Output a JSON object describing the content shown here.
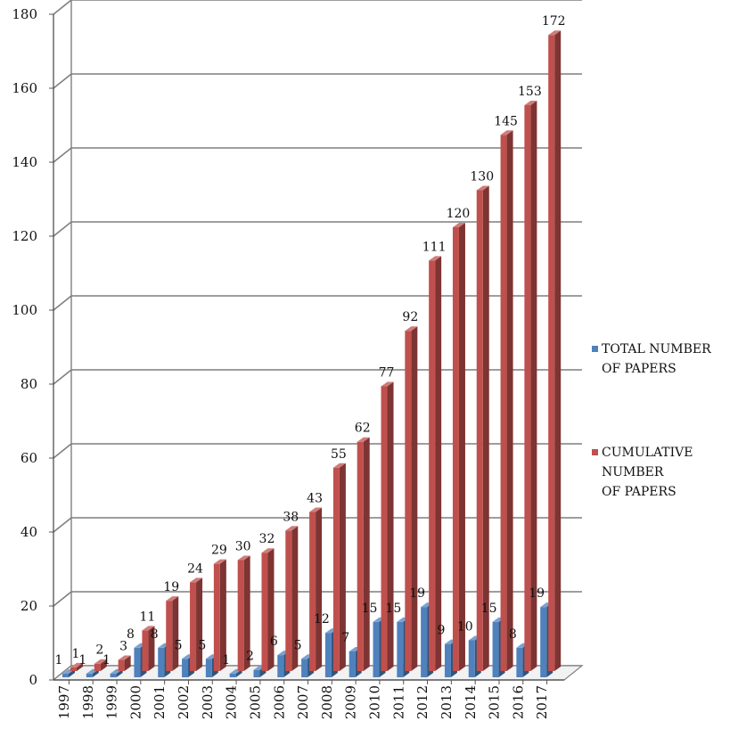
{
  "chart_data": {
    "type": "bar",
    "title": "",
    "xlabel": "",
    "ylabel": "",
    "ylim": [
      0,
      180
    ],
    "yticks": [
      0,
      20,
      40,
      60,
      80,
      100,
      120,
      140,
      160,
      180
    ],
    "grid": true,
    "legend_position": "right",
    "categories": [
      "1997",
      "1998",
      "1999",
      "2000",
      "2001",
      "2002",
      "2003",
      "2004",
      "2005",
      "2006",
      "2007",
      "2008",
      "2009",
      "2010",
      "2011",
      "2012",
      "2013",
      "2014",
      "2015",
      "2016",
      "2017"
    ],
    "series": [
      {
        "name_lines": [
          "TOTAL NUMBER",
          "OF PAPERS"
        ],
        "color": "#4f81bd",
        "values": [
          1,
          1,
          1,
          8,
          8,
          5,
          5,
          1,
          2,
          6,
          5,
          12,
          7,
          15,
          15,
          19,
          9,
          10,
          15,
          8,
          19
        ]
      },
      {
        "name_lines": [
          "CUMULATIVE",
          "NUMBER",
          "OF PAPERS"
        ],
        "color": "#c0504d",
        "values": [
          1,
          2,
          3,
          11,
          19,
          24,
          29,
          30,
          32,
          38,
          43,
          55,
          62,
          77,
          92,
          111,
          120,
          130,
          145,
          153,
          172
        ]
      }
    ]
  }
}
